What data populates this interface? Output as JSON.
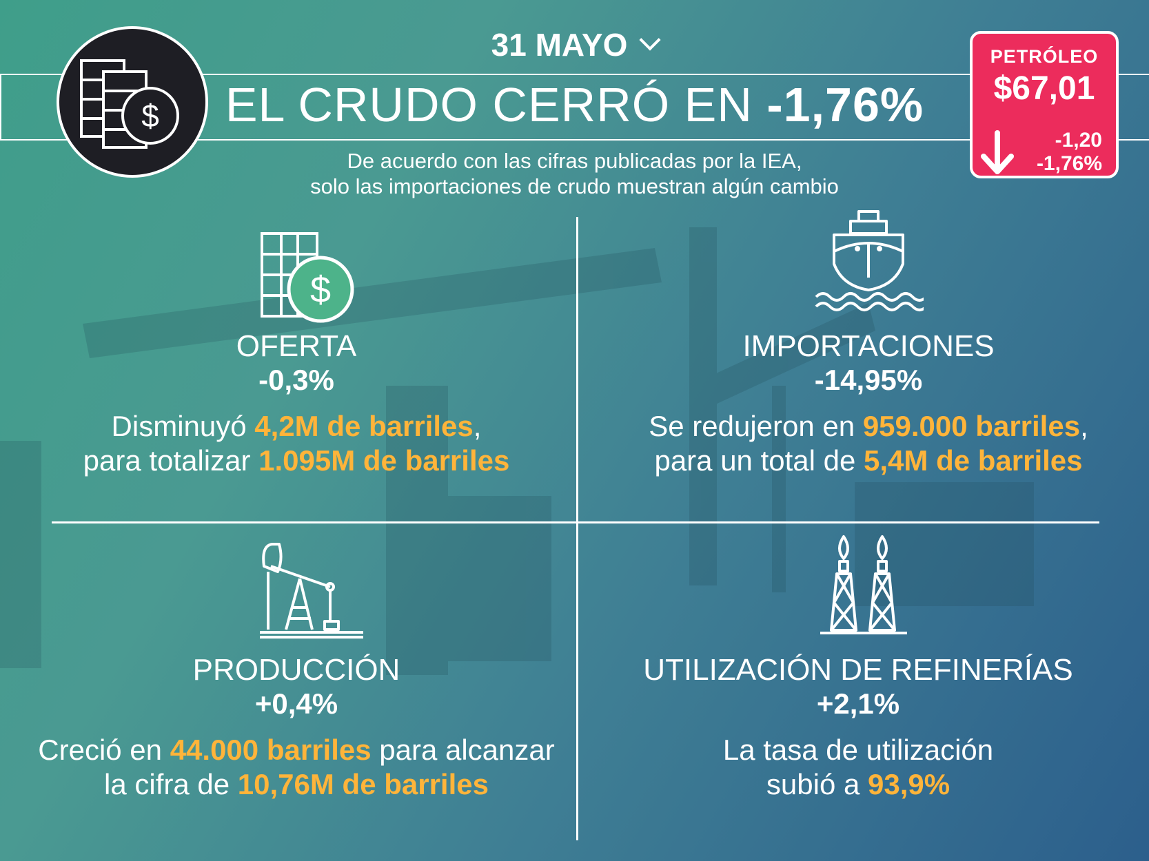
{
  "header": {
    "date": "31 MAYO",
    "headline_prefix": "EL CRUDO CERRÓ EN ",
    "headline_value": "-1,76%",
    "subtitle_line1": "De acuerdo con las cifras publicadas por la IEA,",
    "subtitle_line2": "solo las importaciones de crudo muestran algún cambio"
  },
  "price_box": {
    "label": "PETRÓLEO",
    "value": "$67,01",
    "change_abs": "-1,20",
    "change_pct": "-1,76%",
    "color": "#ec2c5c"
  },
  "sections": {
    "oferta": {
      "title": "OFERTA",
      "pct": "-0,3%",
      "desc1_pre": "Disminuyó ",
      "desc1_hl": "4,2M de barriles",
      "desc1_post": ",",
      "desc2_pre": "para totalizar ",
      "desc2_hl": "1.095M de barriles",
      "icon": "barrels-dollar-icon"
    },
    "importaciones": {
      "title": "IMPORTACIONES",
      "pct": "-14,95%",
      "desc1_pre": "Se redujeron en ",
      "desc1_hl": "959.000 barriles",
      "desc1_post": ",",
      "desc2_pre": "para un total de ",
      "desc2_hl": "5,4M de barriles",
      "icon": "ship-icon"
    },
    "produccion": {
      "title": "PRODUCCIÓN",
      "pct": "+0,4%",
      "desc1_pre": "Creció en ",
      "desc1_hl": "44.000 barriles",
      "desc1_post": " para alcanzar",
      "desc2_pre": "la cifra de ",
      "desc2_hl": "10,76M de barriles",
      "icon": "pumpjack-icon"
    },
    "refinerias": {
      "title": "UTILIZACIÓN DE REFINERÍAS",
      "pct": "+2,1%",
      "desc1": "La tasa de utilización",
      "desc2_pre": "subió a ",
      "desc2_hl": "93,9%",
      "icon": "refinery-towers-icon"
    }
  },
  "colors": {
    "highlight": "#ffb43a",
    "dollar_circle": "#4db38a"
  }
}
